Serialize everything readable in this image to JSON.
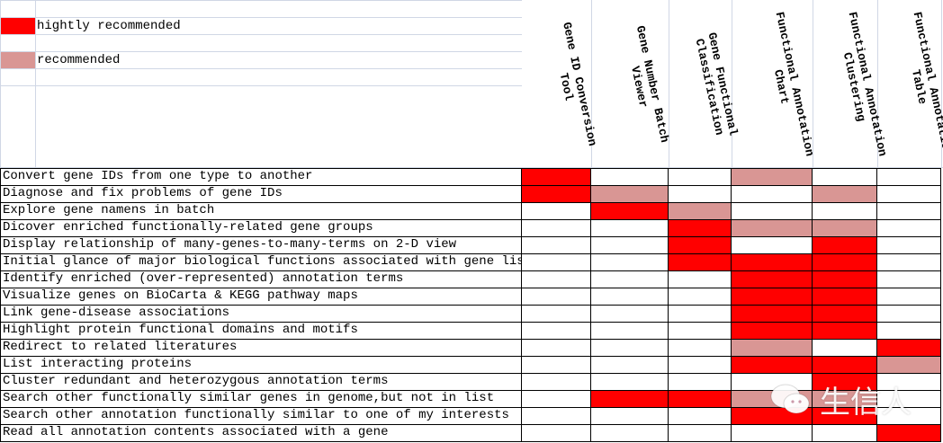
{
  "colors": {
    "high": "#ff0000",
    "recommended": "#d99694",
    "none": "#ffffff",
    "grid": "#000000",
    "sheet_grid": "#d0d7e5"
  },
  "legend": {
    "high_label": "hightly recommended",
    "recommended_label": "recommended"
  },
  "columns": [
    "Gene ID Conversion Tool",
    "Gene Number Batch Viewer",
    "Gene Functional Classification",
    "Functional Annotation Chart",
    "Functional Annotation Clustering",
    "Functional Annotation Table"
  ],
  "rows": [
    {
      "task": "Convert gene IDs from one type to another",
      "cells": [
        "H",
        "",
        "",
        "R",
        "",
        ""
      ]
    },
    {
      "task": "Diagnose and fix problems of gene IDs",
      "cells": [
        "H",
        "R",
        "",
        "",
        "R",
        ""
      ]
    },
    {
      "task": "Explore gene namens in batch",
      "cells": [
        "",
        "H",
        "R",
        "",
        "",
        ""
      ]
    },
    {
      "task": "Dicover enriched functionally-related gene groups",
      "cells": [
        "",
        "",
        "H",
        "R",
        "R",
        ""
      ]
    },
    {
      "task": "Display relationship of many-genes-to-many-terms on 2-D view",
      "cells": [
        "",
        "",
        "H",
        "",
        "H",
        ""
      ]
    },
    {
      "task": "Initial glance of major biological functions associated with gene list",
      "cells": [
        "",
        "",
        "H",
        "H",
        "H",
        ""
      ]
    },
    {
      "task": "Identify enriched (over-represented) annotation terms",
      "cells": [
        "",
        "",
        "",
        "H",
        "H",
        ""
      ]
    },
    {
      "task": "Visualize genes on BioCarta & KEGG pathway maps",
      "cells": [
        "",
        "",
        "",
        "H",
        "H",
        ""
      ]
    },
    {
      "task": "Link gene-disease associations",
      "cells": [
        "",
        "",
        "",
        "H",
        "H",
        ""
      ]
    },
    {
      "task": "Highlight protein functional domains and motifs",
      "cells": [
        "",
        "",
        "",
        "H",
        "H",
        ""
      ]
    },
    {
      "task": "Redirect to related literatures",
      "cells": [
        "",
        "",
        "",
        "R",
        "",
        "H"
      ]
    },
    {
      "task": "List interacting proteins",
      "cells": [
        "",
        "",
        "",
        "H",
        "H",
        "R"
      ]
    },
    {
      "task": "Cluster redundant and heterozygous annotation terms",
      "cells": [
        "",
        "",
        "",
        "",
        "H",
        ""
      ]
    },
    {
      "task": "Search other functionally similar genes in genome,but not in list",
      "cells": [
        "",
        "H",
        "H",
        "R",
        "R",
        ""
      ]
    },
    {
      "task": "Search other annotation functionally similar to one of my interests",
      "cells": [
        "",
        "",
        "",
        "H",
        "H",
        ""
      ]
    },
    {
      "task": "Read all annotation contents associated with a gene",
      "cells": [
        "",
        "",
        "",
        "",
        "",
        "H"
      ]
    }
  ],
  "watermark": {
    "icon": "wechat-icon",
    "text": "生信人"
  }
}
